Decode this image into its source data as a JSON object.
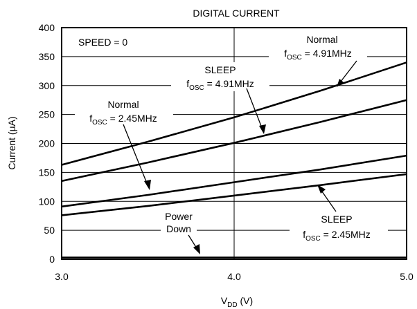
{
  "chart_data": {
    "type": "line",
    "title": "DIGITAL CURRENT",
    "xlabel": {
      "main": "V",
      "sub": "DD",
      "unit": " (V)"
    },
    "ylabel": "Current (µA)",
    "xlim": [
      3.0,
      5.0
    ],
    "ylim": [
      0,
      400
    ],
    "xticks": [
      3.0,
      4.0,
      5.0
    ],
    "xtick_labels": [
      "3.0",
      "4.0",
      "5.0"
    ],
    "yticks": [
      0,
      50,
      100,
      150,
      200,
      250,
      300,
      350,
      400
    ],
    "ytick_labels": [
      "0",
      "50",
      "100",
      "150",
      "200",
      "250",
      "300",
      "350",
      "400"
    ],
    "grid": {
      "horizontal": true,
      "vertical_at": [
        4.0
      ]
    },
    "condition_label": "SPEED = 0",
    "series": [
      {
        "x": [
          3.0,
          3.5,
          4.0,
          4.5,
          5.0
        ],
        "y": [
          163,
          203,
          245,
          291,
          340
        ]
      },
      {
        "x": [
          3.0,
          3.5,
          4.0,
          4.5,
          5.0
        ],
        "y": [
          135,
          167,
          201,
          237,
          275
        ]
      },
      {
        "x": [
          3.0,
          3.5,
          4.0,
          4.5,
          5.0
        ],
        "y": [
          91,
          111,
          133,
          155,
          179
        ]
      },
      {
        "x": [
          3.0,
          3.5,
          4.0,
          4.5,
          5.0
        ],
        "y": [
          76,
          92,
          110,
          128,
          147
        ]
      },
      {
        "x": [
          3.0,
          5.0
        ],
        "y": [
          3,
          3
        ]
      }
    ],
    "annotations": [
      {
        "line1": "Normal",
        "f_prefix": "f",
        "f_sub": "OSC",
        "f_value": " = 4.91MHz"
      },
      {
        "line1": "SLEEP",
        "f_prefix": "f",
        "f_sub": "OSC",
        "f_value": " = 4.91MHz"
      },
      {
        "line1": "Normal",
        "f_prefix": "f",
        "f_sub": "OSC",
        "f_value": " = 2.45MHz"
      },
      {
        "line1": "SLEEP",
        "f_prefix": "f",
        "f_sub": "OSC",
        "f_value": " = 2.45MHz"
      },
      {
        "line1": "Power",
        "line2": "Down"
      }
    ]
  }
}
